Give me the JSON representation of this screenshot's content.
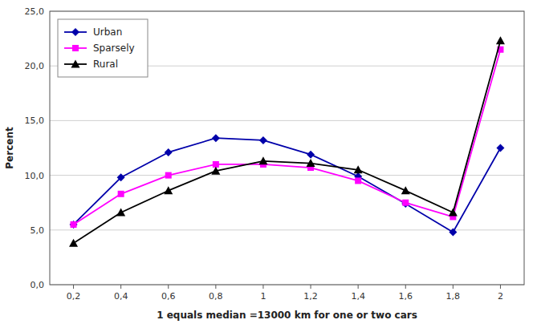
{
  "chart_data": {
    "type": "line",
    "x_label": "1 equals median =13000 km for one or two cars",
    "y_label": "Percent",
    "x": [
      0.2,
      0.4,
      0.6,
      0.8,
      1.0,
      1.2,
      1.4,
      1.6,
      1.8,
      2.0
    ],
    "series": [
      {
        "name": "Urban",
        "color": "#0000aa",
        "marker": "diamond",
        "values": [
          5.5,
          9.8,
          12.1,
          13.4,
          13.2,
          11.9,
          9.9,
          7.4,
          4.8,
          12.5
        ]
      },
      {
        "name": "Sparsely",
        "color": "#ff00ff",
        "marker": "square",
        "values": [
          5.5,
          8.3,
          10.0,
          11.0,
          11.0,
          10.7,
          9.5,
          7.5,
          6.2,
          21.5
        ]
      },
      {
        "name": "Rural",
        "color": "#000000",
        "marker": "triangle",
        "values": [
          3.8,
          6.6,
          8.6,
          10.4,
          11.3,
          11.1,
          10.5,
          8.6,
          6.6,
          22.3
        ]
      }
    ],
    "xlim": [
      0.1,
      2.1
    ],
    "ylim": [
      0.0,
      25.0
    ],
    "xticks": [
      {
        "value": 0.2,
        "label": "0,2"
      },
      {
        "value": 0.4,
        "label": "0,4"
      },
      {
        "value": 0.6,
        "label": "0,6"
      },
      {
        "value": 0.8,
        "label": "0,8"
      },
      1,
      {
        "value": 1.2,
        "label": "1,2"
      },
      {
        "value": 1.4,
        "label": "1,4"
      },
      {
        "value": 1.6,
        "label": "1,6"
      },
      {
        "value": 1.8,
        "label": "1,8"
      },
      2
    ],
    "yticks": [
      {
        "value": 0.0,
        "label": "0,0"
      },
      {
        "value": 5.0,
        "label": "5,0"
      },
      {
        "value": 10.0,
        "label": "10,0"
      },
      {
        "value": 15.0,
        "label": "15,0"
      },
      {
        "value": 20.0,
        "label": "20,0"
      },
      {
        "value": 25.0,
        "label": "25,0"
      }
    ],
    "grid": true,
    "legend": "upper left"
  }
}
